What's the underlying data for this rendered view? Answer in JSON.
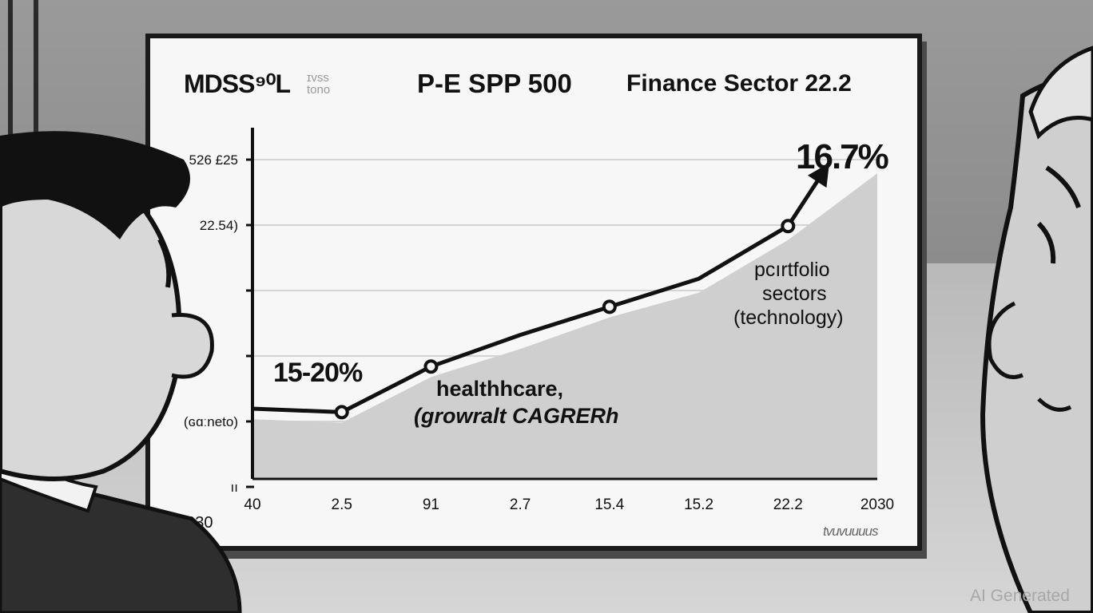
{
  "header": {
    "logo": "MDSS⁹⁰L",
    "logo_sub_1": "ɪvss",
    "logo_sub_2": "tono",
    "center_title": "P-E SPP 500",
    "right_title": "Finance Sector 22.2"
  },
  "chart_data": {
    "type": "line",
    "y_tick_labels": [
      "526 £25",
      "22.54)",
      "",
      "",
      "(ɢɑːneto)",
      "ıı"
    ],
    "x_tick_labels": [
      "40",
      "2.5",
      "91",
      "2.7",
      "15.4",
      "15.2",
      "22.2",
      "2030"
    ],
    "x_corner_label": "2030",
    "series": [
      {
        "values": [
          1.0,
          0.95,
          1.6,
          2.05,
          2.45,
          2.85,
          3.6,
          4.5
        ]
      }
    ],
    "area_values": [
      0.85,
      0.8,
      1.45,
      1.85,
      2.3,
      2.65,
      3.4,
      4.35
    ],
    "markers_at": [
      1,
      2,
      4,
      6
    ],
    "ylim": [
      0,
      5
    ],
    "grid": true,
    "end_arrow": true,
    "annotations": {
      "peak_value": "16.7%",
      "left_range": "15-20%",
      "mid_label_1": "healthhcare,",
      "mid_label_2": "(growralt CAGRERh",
      "right_label_1": "pcırtfolio",
      "right_label_2": "sectors",
      "right_label_3": "(technology)"
    }
  },
  "footer": {
    "tick_mark_text": "tvuvuuuus",
    "watermark": "AI Generated"
  },
  "colors": {
    "background": "#8f8f8f",
    "board": "#f7f7f7",
    "ink": "#111111",
    "area": "#cfcfcf"
  }
}
